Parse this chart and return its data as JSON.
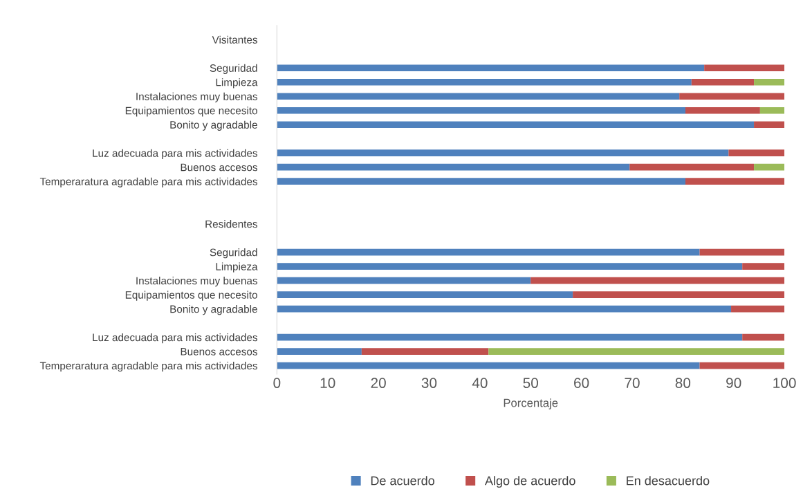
{
  "chart_data": {
    "type": "bar",
    "orientation": "horizontal",
    "stacked": true,
    "xlabel": "Porcentaje",
    "categories": [
      "Visitantes",
      null,
      "Seguridad",
      "Limpieza",
      "Instalaciones muy buenas",
      "Equipamientos que necesito",
      "Bonito y agradable",
      null,
      "Luz adecuada para mis actividades",
      "Buenos accesos",
      "Temperaratura agradable para mis actividades",
      null,
      null,
      "Residentes",
      null,
      "Seguridad",
      "Limpieza",
      "Instalaciones muy buenas",
      "Equipamientos que necesito",
      "Bonito y agradable",
      null,
      "Luz adecuada para mis actividades",
      "Buenos accesos",
      "Temperaratura agradable para mis actividades"
    ],
    "series": [
      {
        "name": "De acuerdo",
        "color": "#4f81bd",
        "values": [
          null,
          null,
          84.2,
          81.7,
          79.3,
          80.5,
          94,
          null,
          89,
          69.5,
          80.5,
          null,
          null,
          null,
          null,
          83.3,
          91.7,
          50,
          58.3,
          89.5,
          null,
          91.7,
          16.7,
          83.3
        ]
      },
      {
        "name": "Algo de acuerdo",
        "color": "#c0504d",
        "values": [
          null,
          null,
          15.8,
          12.3,
          20.7,
          14.7,
          6,
          null,
          11,
          24.5,
          19.5,
          null,
          null,
          null,
          null,
          16.7,
          8.3,
          50,
          41.7,
          10.5,
          null,
          8.3,
          25,
          16.7
        ]
      },
      {
        "name": "En desacuerdo",
        "color": "#9bbb59",
        "values": [
          null,
          null,
          null,
          6,
          null,
          4.8,
          null,
          null,
          null,
          6,
          null,
          null,
          null,
          null,
          null,
          null,
          null,
          null,
          null,
          null,
          null,
          null,
          58.3,
          null
        ]
      }
    ],
    "xlim": [
      0,
      100
    ],
    "xticks": [
      0,
      10,
      20,
      30,
      40,
      50,
      60,
      70,
      80,
      90,
      100
    ],
    "grid": false,
    "legend": "bottom"
  }
}
